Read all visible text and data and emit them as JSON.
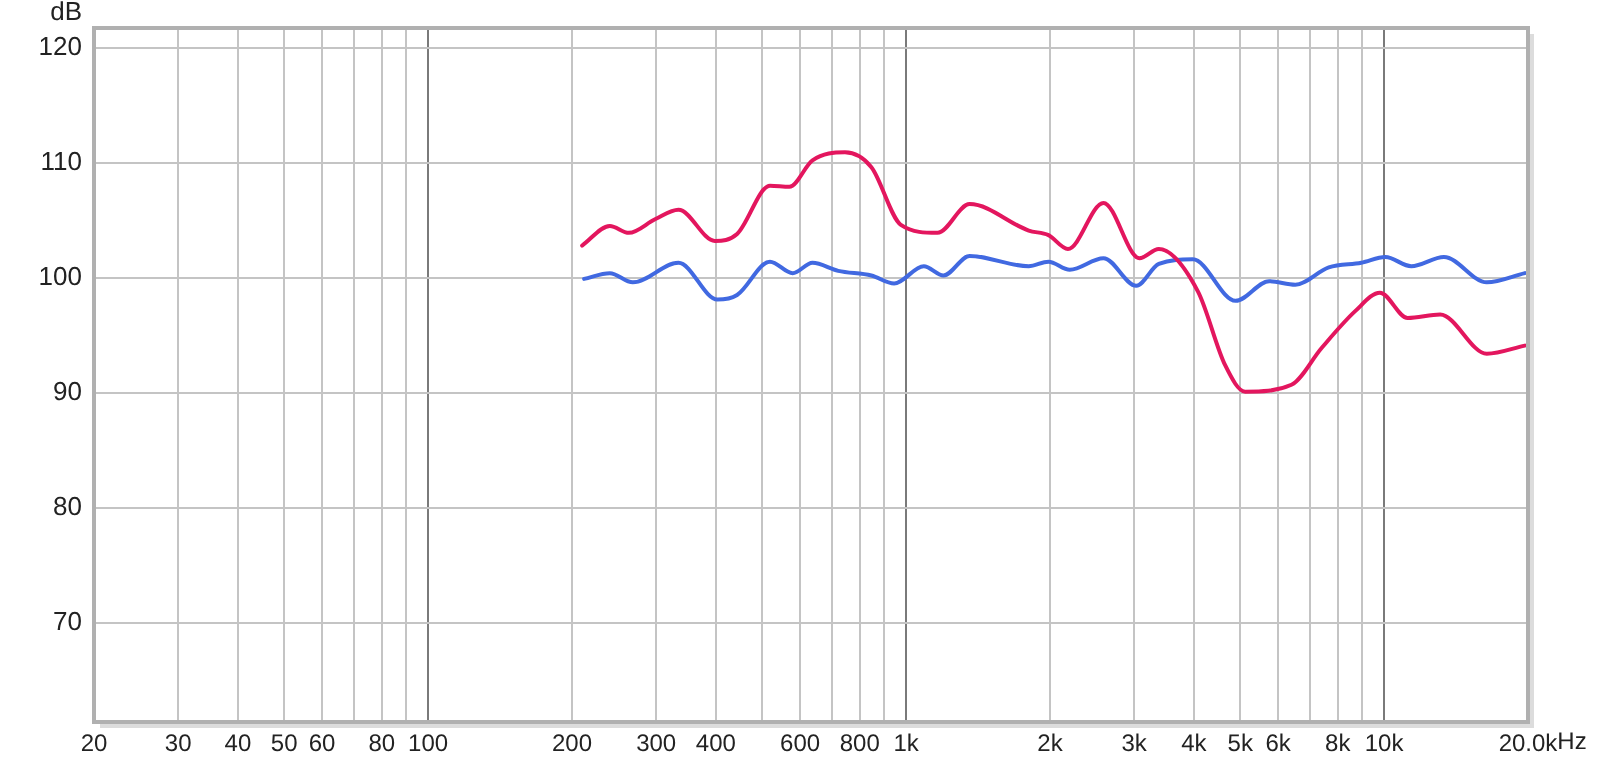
{
  "chart_data": {
    "type": "line",
    "ylabel": "dB",
    "log": "x",
    "xlim": [
      20,
      20000
    ],
    "ylim": [
      61.4,
      121.7
    ],
    "xticks": [
      20,
      30,
      40,
      50,
      60,
      {
        "value": 70,
        "label": null
      },
      80,
      {
        "value": 90,
        "label": null
      },
      100,
      200,
      300,
      400,
      {
        "value": 500,
        "label": null
      },
      600,
      {
        "value": 700,
        "label": null
      },
      800,
      {
        "value": 900,
        "label": null
      },
      {
        "value": 1000,
        "label": "1k"
      },
      {
        "value": 2000,
        "label": "2k"
      },
      {
        "value": 3000,
        "label": "3k"
      },
      {
        "value": 4000,
        "label": "4k"
      },
      {
        "value": 5000,
        "label": "5k"
      },
      {
        "value": 6000,
        "label": "6k"
      },
      {
        "value": 7000,
        "label": null
      },
      {
        "value": 8000,
        "label": "8k"
      },
      {
        "value": 9000,
        "label": null
      },
      {
        "value": 10000,
        "label": "10k"
      },
      {
        "value": 20000,
        "label": "20.0k"
      }
    ],
    "xlabel": "Hz",
    "yticks": [
      70,
      80,
      90,
      100,
      110,
      120
    ],
    "grid": true,
    "legend": false,
    "marker": "none",
    "line_style": "solid",
    "series": [
      {
        "color": "#e3165e",
        "x": [
          210,
          240,
          263,
          299,
          334,
          398,
          443,
          519,
          570,
          637,
          745,
          846,
          975,
          1163,
          1358,
          1805,
          1985,
          2180,
          2588,
          3077,
          3378,
          4080,
          4650,
          5120,
          6400,
          7400,
          8700,
          9800,
          11200,
          13100,
          16400,
          19700
        ],
        "values": [
          102.8,
          104.5,
          103.9,
          105.1,
          105.9,
          103.2,
          103.8,
          108.0,
          107.9,
          110.2,
          110.9,
          109.6,
          104.6,
          103.9,
          106.4,
          104.1,
          103.7,
          102.5,
          106.5,
          101.7,
          102.5,
          98.8,
          92.4,
          90.1,
          90.7,
          93.9,
          97.1,
          98.7,
          96.5,
          96.8,
          93.4,
          94.1
        ]
      },
      {
        "color": "#4169e1",
        "x": [
          212,
          240,
          268,
          334,
          403,
          443,
          519,
          579,
          637,
          721,
          846,
          944,
          1089,
          1197,
          1358,
          1805,
          1985,
          2200,
          2588,
          3030,
          3378,
          3980,
          4890,
          5750,
          6520,
          7660,
          8960,
          10060,
          11400,
          13340,
          16400,
          19700
        ],
        "values": [
          99.9,
          100.4,
          99.6,
          101.3,
          98.1,
          98.5,
          101.4,
          100.4,
          101.3,
          100.6,
          100.2,
          99.5,
          101.0,
          100.2,
          101.9,
          101.0,
          101.4,
          100.7,
          101.7,
          99.3,
          101.2,
          101.6,
          98.0,
          99.7,
          99.4,
          100.9,
          101.3,
          101.8,
          101.0,
          101.8,
          99.6,
          100.4
        ]
      }
    ]
  }
}
